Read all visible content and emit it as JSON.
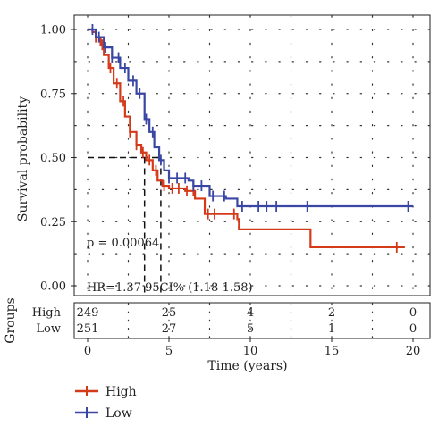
{
  "chart_data": {
    "type": "line",
    "subtype": "kaplan-meier survival curve",
    "ylabel": "Survival probability",
    "xlabel": "Time (years)",
    "xlim": [
      0,
      20
    ],
    "ylim": [
      0,
      1
    ],
    "x_ticks": [
      "0",
      "5",
      "10",
      "15",
      "20"
    ],
    "y_ticks": [
      "0.00",
      "0.25",
      "0.50",
      "0.75",
      "1.00"
    ],
    "grid": "dotted",
    "colors": {
      "High": "#d43a1a",
      "Low": "#3a46a3"
    },
    "series": [
      {
        "name": "High",
        "color": "#d43a1a",
        "points": [
          [
            0,
            1.0
          ],
          [
            0.3,
            0.99
          ],
          [
            0.5,
            0.97
          ],
          [
            0.8,
            0.94
          ],
          [
            1.0,
            0.9
          ],
          [
            1.3,
            0.85
          ],
          [
            1.6,
            0.79
          ],
          [
            2.0,
            0.72
          ],
          [
            2.3,
            0.66
          ],
          [
            2.6,
            0.6
          ],
          [
            3.0,
            0.55
          ],
          [
            3.3,
            0.52
          ],
          [
            3.6,
            0.49
          ],
          [
            4.0,
            0.45
          ],
          [
            4.3,
            0.41
          ],
          [
            4.6,
            0.39
          ],
          [
            5.0,
            0.38
          ],
          [
            6.0,
            0.37
          ],
          [
            6.6,
            0.34
          ],
          [
            7.2,
            0.28
          ],
          [
            8.0,
            0.28
          ],
          [
            9.2,
            0.26
          ],
          [
            9.3,
            0.22
          ],
          [
            13.6,
            0.22
          ],
          [
            13.7,
            0.15
          ],
          [
            19.5,
            0.15
          ]
        ],
        "censor_x": [
          0.5,
          0.9,
          1.4,
          1.8,
          2.2,
          2.6,
          3.0,
          3.4,
          3.8,
          4.2,
          4.7,
          5.2,
          5.6,
          6.1,
          6.5,
          7.4,
          7.8,
          9.0,
          19.0
        ]
      },
      {
        "name": "Low",
        "color": "#3a46a3",
        "points": [
          [
            0,
            1.0
          ],
          [
            0.5,
            0.97
          ],
          [
            1.0,
            0.93
          ],
          [
            1.5,
            0.89
          ],
          [
            2.0,
            0.85
          ],
          [
            2.5,
            0.8
          ],
          [
            3.0,
            0.75
          ],
          [
            3.5,
            0.65
          ],
          [
            3.8,
            0.6
          ],
          [
            4.1,
            0.54
          ],
          [
            4.4,
            0.49
          ],
          [
            4.7,
            0.45
          ],
          [
            5.0,
            0.42
          ],
          [
            6.2,
            0.41
          ],
          [
            6.5,
            0.39
          ],
          [
            7.5,
            0.35
          ],
          [
            8.5,
            0.34
          ],
          [
            9.2,
            0.31
          ],
          [
            10.0,
            0.31
          ],
          [
            20.0,
            0.31
          ]
        ],
        "censor_x": [
          0.3,
          0.7,
          1.1,
          1.5,
          1.9,
          2.3,
          2.8,
          3.2,
          3.6,
          4.0,
          4.5,
          5.0,
          5.5,
          6.0,
          6.5,
          7.0,
          7.7,
          8.4,
          9.5,
          10.5,
          11.0,
          11.6,
          13.5,
          19.7
        ]
      }
    ],
    "median_lines": {
      "y": 0.5,
      "x": [
        3.5,
        4.5
      ]
    },
    "annotations": {
      "pvalue": "p = 0.00064",
      "hr": "HR=1.37 95CI% (1.18-1.58)"
    },
    "risk_table": {
      "title": "Groups",
      "rows": [
        {
          "label": "High",
          "values": [
            "249",
            "25",
            "4",
            "2",
            "0"
          ]
        },
        {
          "label": "Low",
          "values": [
            "251",
            "27",
            "5",
            "1",
            "0"
          ]
        }
      ]
    },
    "legend": {
      "placement": "bottom-left",
      "items": [
        "High",
        "Low"
      ]
    }
  }
}
